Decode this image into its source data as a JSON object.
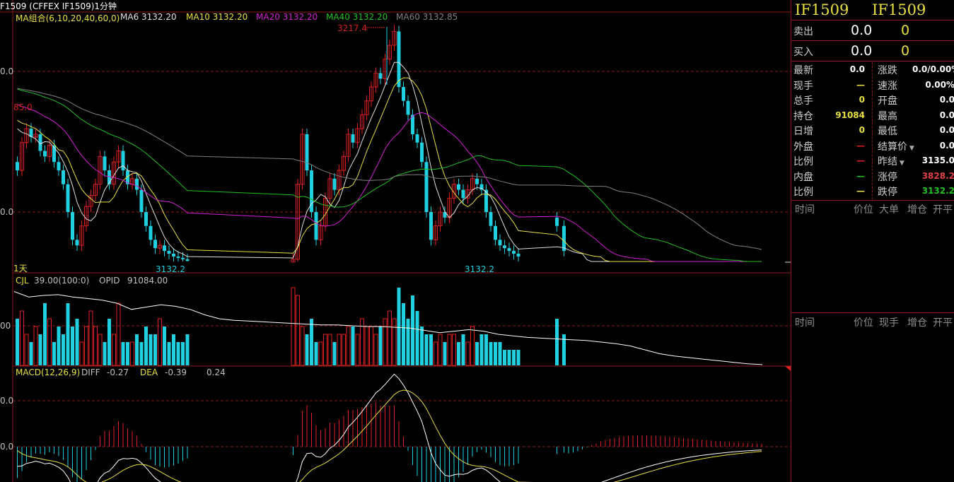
{
  "window_title": "F1509  (CFFEX IF1509)1分钟",
  "main_panel": {
    "ma_label": "MA组合(6,10,20,40,60,0)",
    "ma": [
      {
        "label": "MA6 3132.20",
        "color": "#e0e0e0"
      },
      {
        "label": "MA10 3132.20",
        "color": "#e8e040"
      },
      {
        "label": "MA20 3132.20",
        "color": "#d020d0"
      },
      {
        "label": "MA40 3132.20",
        "color": "#20c020"
      },
      {
        "label": "MA60 3132.85",
        "color": "#808080"
      }
    ],
    "high_marker": "3217.4",
    "left_marker": "85.0",
    "low_label_1": "3132.2",
    "low_label_2": "3132.2",
    "period_label": "1天",
    "axis_labels": [
      "0.0",
      "0.0"
    ]
  },
  "volume_panel": {
    "cjl_label": "CJL",
    "cjl_value": "39.00(100:0)",
    "opid_label": "OPID",
    "opid_value": "91084.00",
    "axis_label": "00"
  },
  "macd_panel": {
    "label": "MACD(12,26,9)",
    "diff_label": "DIFF",
    "diff_value": "-0.27",
    "dea_label": "DEA",
    "dea_value": "-0.39",
    "macd_value": "0.24",
    "axis_labels": [
      "0.0",
      "0.0"
    ]
  },
  "chart_data": {
    "type": "candlestick",
    "price_range": [
      3132.2,
      3217.4
    ],
    "up_color": "#e02020",
    "down_color": "#20d0e0",
    "segments": [
      {
        "closes": [
          3165,
          3175,
          3180,
          3177,
          3178,
          3172,
          3170,
          3174,
          3168,
          3165,
          3160,
          3150,
          3140,
          3138,
          3145,
          3152,
          3156,
          3160,
          3170,
          3165,
          3160,
          3168,
          3172,
          3165,
          3160,
          3162,
          3158,
          3150,
          3145,
          3140,
          3137,
          3138,
          3136,
          3135,
          3134,
          3133.5,
          3133,
          3132.4
        ],
        "volumes": [
          6,
          7,
          4,
          3,
          5,
          4,
          8,
          6,
          3,
          5,
          4,
          8,
          5,
          6,
          3,
          5,
          7,
          5,
          4,
          3,
          6,
          4,
          8,
          3,
          3,
          3,
          4,
          3,
          5,
          4,
          4,
          6,
          5,
          3,
          4,
          3,
          3,
          4
        ]
      },
      {
        "closes": [
          3133,
          3160,
          3178,
          3165,
          3150,
          3140,
          3145,
          3155,
          3162,
          3158,
          3165,
          3170,
          3178,
          3175,
          3180,
          3185,
          3190,
          3195,
          3200,
          3198,
          3205,
          3210,
          3215,
          3195,
          3190,
          3185,
          3178,
          3175,
          3168,
          3150,
          3140,
          3145,
          3150,
          3148,
          3155,
          3160,
          3158,
          3155,
          3158,
          3162,
          3160,
          3158,
          3150,
          3145,
          3140,
          3138,
          3137,
          3136,
          3135,
          3134
        ],
        "volumes": [
          10,
          9,
          5,
          4,
          6,
          3,
          3,
          4,
          4,
          3,
          4,
          4,
          5,
          5,
          4,
          6,
          5,
          5,
          4,
          5,
          6,
          7,
          6,
          10,
          8,
          6,
          9,
          7,
          5,
          4,
          4,
          3,
          4,
          3,
          4,
          4,
          3,
          4,
          3,
          5,
          3,
          4,
          4,
          3,
          3,
          3,
          2,
          2,
          2,
          2
        ]
      },
      {
        "closes": [
          3145,
          3136
        ],
        "volumes": [
          6,
          4
        ]
      }
    ],
    "opid_line": [
      95,
      88,
      90,
      91,
      88,
      86,
      84,
      80,
      72,
      75,
      78,
      76,
      72,
      65,
      60,
      58,
      57,
      56,
      55,
      54,
      53,
      52,
      52,
      51,
      50,
      50,
      49,
      48,
      45,
      42,
      44,
      46,
      44,
      40,
      38,
      36,
      35,
      34,
      33,
      32,
      30,
      28,
      25,
      20,
      15,
      12,
      10,
      8,
      6,
      4,
      2,
      1
    ]
  },
  "right_panel": {
    "symbol_1": "IF1509",
    "symbol_2": "IF1509",
    "sell": {
      "label": "卖出",
      "price": "0.0",
      "qty": "0"
    },
    "buy": {
      "label": "买入",
      "price": "0.0",
      "qty": "0"
    },
    "left_rows": [
      {
        "label": "最新",
        "value": "0.0",
        "color": "#ffffff"
      },
      {
        "label": "现手",
        "value": "—",
        "color": "#e8e040"
      },
      {
        "label": "总手",
        "value": "0",
        "color": "#e8e040"
      },
      {
        "label": "持仓",
        "value": "91084",
        "color": "#e8e040"
      },
      {
        "label": "日增",
        "value": "0",
        "color": "#e8e040"
      },
      {
        "label": "外盘",
        "value": "—",
        "color": "#e02020"
      },
      {
        "label": "比例",
        "value": "—",
        "color": "#e02020"
      },
      {
        "label": "内盘",
        "value": "—",
        "color": "#20c020"
      },
      {
        "label": "比例",
        "value": "—",
        "color": "#e8e040"
      }
    ],
    "right_rows": [
      {
        "label": "涨跌",
        "value": "0.0/0.00%",
        "color": "#ffffff"
      },
      {
        "label": "速涨",
        "value": "0.00%",
        "color": "#ffffff"
      },
      {
        "label": "开盘",
        "value": "0.0",
        "color": "#ffffff"
      },
      {
        "label": "最高",
        "value": "0.0",
        "color": "#ffffff"
      },
      {
        "label": "最低",
        "value": "0.0",
        "color": "#ffffff"
      },
      {
        "label": "结算价",
        "value": "0.0",
        "color": "#ffffff",
        "dropdown": true
      },
      {
        "label": "昨结",
        "value": "3135.0",
        "color": "#ffffff",
        "dropdown": true
      },
      {
        "label": "涨停",
        "value": "3828.2",
        "color": "#e04040"
      },
      {
        "label": "跌停",
        "value": "3132.2",
        "color": "#20c020"
      }
    ],
    "big_orders_header": [
      "时间",
      "价位",
      "大单",
      "增仓",
      "开平"
    ],
    "ticks_header": [
      "时间",
      "价位",
      "现手",
      "增仓",
      "开平"
    ]
  }
}
